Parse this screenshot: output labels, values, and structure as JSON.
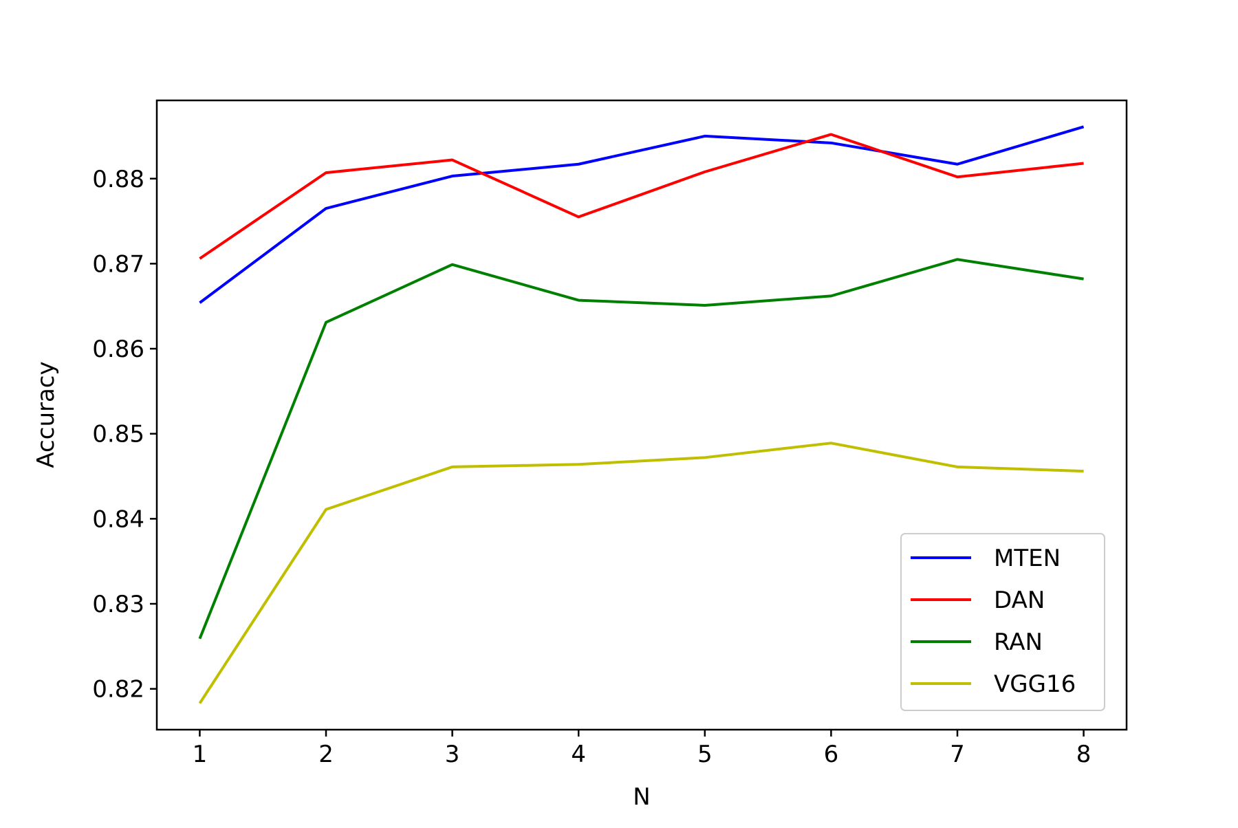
{
  "chart_data": {
    "type": "line",
    "title": "",
    "xlabel": "N",
    "ylabel": "Accuracy",
    "x": [
      1,
      2,
      3,
      4,
      5,
      6,
      7,
      8
    ],
    "xlim": [
      0.66,
      8.34
    ],
    "ylim": [
      0.8152,
      0.8892
    ],
    "xticks": [
      1,
      2,
      3,
      4,
      5,
      6,
      7,
      8
    ],
    "xtick_labels": [
      "1",
      "2",
      "3",
      "4",
      "5",
      "6",
      "7",
      "8"
    ],
    "yticks": [
      0.82,
      0.83,
      0.84,
      0.85,
      0.86,
      0.87,
      0.88
    ],
    "ytick_labels": [
      "0.82",
      "0.83",
      "0.84",
      "0.85",
      "0.86",
      "0.87",
      "0.88"
    ],
    "grid": false,
    "legend_position": "lower-right",
    "series": [
      {
        "name": "MTEN",
        "color": "#0000ff",
        "values": [
          0.8654,
          0.8765,
          0.8803,
          0.8817,
          0.885,
          0.8842,
          0.8817,
          0.8861
        ]
      },
      {
        "name": "DAN",
        "color": "#ff0000",
        "values": [
          0.8706,
          0.8807,
          0.8822,
          0.8755,
          0.8808,
          0.8852,
          0.8802,
          0.8818
        ]
      },
      {
        "name": "RAN",
        "color": "#008000",
        "values": [
          0.8259,
          0.8631,
          0.8699,
          0.8657,
          0.8651,
          0.8662,
          0.8705,
          0.8682
        ]
      },
      {
        "name": "VGG16",
        "color": "#bfbf00",
        "values": [
          0.8183,
          0.8411,
          0.8461,
          0.8464,
          0.8472,
          0.8489,
          0.8461,
          0.8456
        ]
      }
    ]
  }
}
